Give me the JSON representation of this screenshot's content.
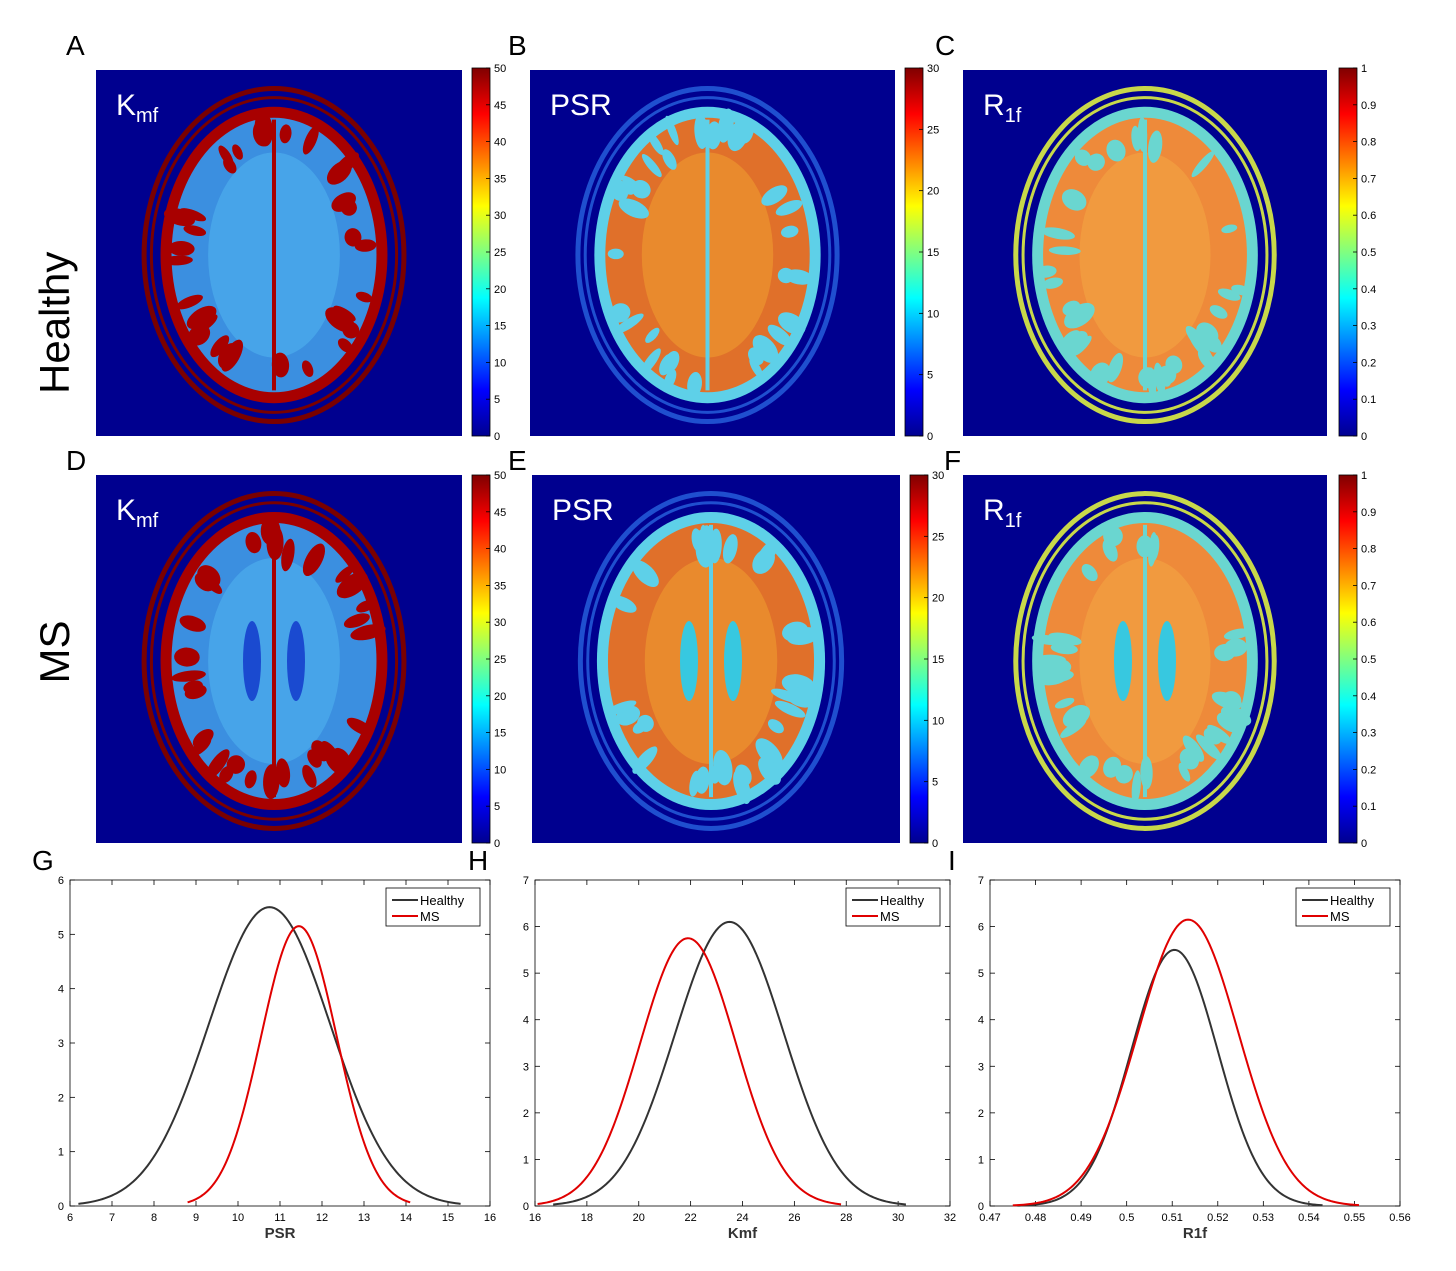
{
  "colors": {
    "map_background": "#00008f",
    "healthy": "#333333",
    "ms": "#e00000"
  },
  "row_labels": {
    "healthy": "Healthy",
    "ms": "MS"
  },
  "panel_letters": [
    "A",
    "B",
    "C",
    "D",
    "E",
    "F",
    "G",
    "H",
    "I"
  ],
  "maps": [
    {
      "letter": "A",
      "name_base": "K",
      "name_sub": "mf",
      "colorbar": {
        "max": 50,
        "ticks": [
          "0",
          "5",
          "10",
          "15",
          "20",
          "25",
          "30",
          "35",
          "40",
          "45",
          "50"
        ]
      },
      "row": "healthy",
      "kind": "kmf"
    },
    {
      "letter": "B",
      "name_base": "PSR",
      "name_sub": "",
      "colorbar": {
        "max": 30,
        "ticks": [
          "0",
          "5",
          "10",
          "15",
          "20",
          "25",
          "30"
        ]
      },
      "row": "healthy",
      "kind": "psr"
    },
    {
      "letter": "C",
      "name_base": "R",
      "name_sub": "1f",
      "colorbar": {
        "max": 1,
        "ticks": [
          "0",
          "0.1",
          "0.2",
          "0.3",
          "0.4",
          "0.5",
          "0.6",
          "0.7",
          "0.8",
          "0.9",
          "1"
        ]
      },
      "row": "healthy",
      "kind": "r1f"
    },
    {
      "letter": "D",
      "name_base": "K",
      "name_sub": "mf",
      "colorbar": {
        "max": 50,
        "ticks": [
          "0",
          "5",
          "10",
          "15",
          "20",
          "25",
          "30",
          "35",
          "40",
          "45",
          "50"
        ]
      },
      "row": "ms",
      "kind": "kmf"
    },
    {
      "letter": "E",
      "name_base": "PSR",
      "name_sub": "",
      "colorbar": {
        "max": 30,
        "ticks": [
          "0",
          "5",
          "10",
          "15",
          "20",
          "25",
          "30"
        ]
      },
      "row": "ms",
      "kind": "psr"
    },
    {
      "letter": "F",
      "name_base": "R",
      "name_sub": "1f",
      "colorbar": {
        "max": 1,
        "ticks": [
          "0",
          "0.1",
          "0.2",
          "0.3",
          "0.4",
          "0.5",
          "0.6",
          "0.7",
          "0.8",
          "0.9",
          "1"
        ]
      },
      "row": "ms",
      "kind": "r1f"
    }
  ],
  "chart_data": [
    {
      "type": "line",
      "letter": "G",
      "xlabel": "PSR",
      "ylabel": "",
      "xlim": [
        6,
        16
      ],
      "ylim": [
        0,
        6
      ],
      "xticks": [
        6,
        7,
        8,
        9,
        10,
        11,
        12,
        13,
        14,
        15,
        16
      ],
      "yticks": [
        0,
        1,
        2,
        3,
        4,
        5,
        6
      ],
      "legend": "top-right",
      "series": [
        {
          "name": "Healthy",
          "color": "#333333",
          "mean": 10.75,
          "sd": 1.45,
          "peak": 5.5,
          "x_range": [
            6.2,
            15.3
          ]
        },
        {
          "name": "MS",
          "color": "#e00000",
          "mean": 11.45,
          "sd": 0.9,
          "peak": 5.15,
          "x_range": [
            8.8,
            14.1
          ]
        }
      ]
    },
    {
      "type": "line",
      "letter": "H",
      "xlabel": "Kmf",
      "ylabel": "",
      "xlim": [
        16,
        32
      ],
      "ylim": [
        0,
        7
      ],
      "xticks": [
        16,
        18,
        20,
        22,
        24,
        26,
        28,
        30,
        32
      ],
      "yticks": [
        0,
        1,
        2,
        3,
        4,
        5,
        6,
        7
      ],
      "legend": "top-right",
      "series": [
        {
          "name": "Healthy",
          "color": "#333333",
          "mean": 23.5,
          "sd": 2.1,
          "peak": 6.1,
          "x_range": [
            16.7,
            30.3
          ]
        },
        {
          "name": "MS",
          "color": "#e00000",
          "mean": 21.9,
          "sd": 1.85,
          "peak": 5.75,
          "x_range": [
            16.1,
            27.8
          ]
        }
      ]
    },
    {
      "type": "line",
      "letter": "I",
      "xlabel": "R1f",
      "ylabel": "",
      "xlim": [
        0.47,
        0.56
      ],
      "ylim": [
        0,
        7
      ],
      "xticks": [
        0.47,
        0.48,
        0.49,
        0.5,
        0.51,
        0.52,
        0.53,
        0.54,
        0.55,
        0.56
      ],
      "yticks": [
        0,
        1,
        2,
        3,
        4,
        5,
        6,
        7
      ],
      "legend": "top-right",
      "series": [
        {
          "name": "Healthy",
          "color": "#333333",
          "mean": 0.5105,
          "sd": 0.0095,
          "peak": 5.5,
          "x_range": [
            0.476,
            0.543
          ]
        },
        {
          "name": "MS",
          "color": "#e00000",
          "mean": 0.5135,
          "sd": 0.011,
          "peak": 6.15,
          "x_range": [
            0.475,
            0.551
          ]
        }
      ]
    }
  ]
}
